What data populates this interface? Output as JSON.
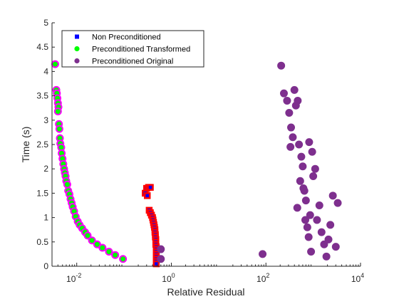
{
  "chart_data": {
    "type": "scatter",
    "xlabel": "Relative Residual",
    "ylabel": "Time (s)",
    "xscale": "log",
    "xlim": [
      0.003,
      10000
    ],
    "ylim": [
      0,
      5
    ],
    "xticks": [
      {
        "value": 0.01,
        "base": "10",
        "exp": "-2"
      },
      {
        "value": 1,
        "base": "10",
        "exp": "0"
      },
      {
        "value": 100,
        "base": "10",
        "exp": "2"
      },
      {
        "value": 10000,
        "base": "10",
        "exp": "4"
      }
    ],
    "yticks": [
      "0",
      "0.5",
      "1",
      "1.5",
      "2",
      "2.5",
      "3",
      "3.5",
      "4",
      "4.5",
      "5"
    ],
    "grid": false,
    "legend_position": "top-left",
    "series": [
      {
        "name": "Non Preconditioned",
        "marker": "square",
        "color": "#0000ff",
        "edge_color": "#ff0000",
        "points": [
          [
            0.3,
            1.6
          ],
          [
            0.33,
            1.62
          ],
          [
            0.36,
            1.62
          ],
          [
            0.28,
            1.5
          ],
          [
            0.31,
            1.45
          ],
          [
            0.34,
            1.15
          ],
          [
            0.36,
            1.1
          ],
          [
            0.38,
            1.05
          ],
          [
            0.4,
            1.0
          ],
          [
            0.41,
            0.95
          ],
          [
            0.42,
            0.9
          ],
          [
            0.43,
            0.85
          ],
          [
            0.44,
            0.8
          ],
          [
            0.45,
            0.75
          ],
          [
            0.45,
            0.7
          ],
          [
            0.46,
            0.65
          ],
          [
            0.46,
            0.6
          ],
          [
            0.47,
            0.55
          ],
          [
            0.47,
            0.5
          ],
          [
            0.47,
            0.45
          ],
          [
            0.48,
            0.4
          ],
          [
            0.48,
            0.35
          ],
          [
            0.48,
            0.3
          ],
          [
            0.48,
            0.25
          ],
          [
            0.48,
            0.2
          ],
          [
            0.48,
            0.15
          ],
          [
            0.48,
            0.1
          ],
          [
            0.48,
            0.05
          ]
        ]
      },
      {
        "name": "Preconditioned Transformed",
        "marker": "circle",
        "color": "#00ff00",
        "edge_color": "#ff00ff",
        "points": [
          [
            0.0035,
            4.15
          ],
          [
            0.0037,
            3.62
          ],
          [
            0.0038,
            3.55
          ],
          [
            0.0039,
            3.45
          ],
          [
            0.004,
            3.35
          ],
          [
            0.0041,
            3.27
          ],
          [
            0.004,
            3.18
          ],
          [
            0.0042,
            2.92
          ],
          [
            0.0043,
            2.82
          ],
          [
            0.0044,
            2.63
          ],
          [
            0.0045,
            2.52
          ],
          [
            0.0047,
            2.44
          ],
          [
            0.0048,
            2.32
          ],
          [
            0.005,
            2.21
          ],
          [
            0.0052,
            2.1
          ],
          [
            0.0054,
            2.0
          ],
          [
            0.0056,
            1.92
          ],
          [
            0.0058,
            1.85
          ],
          [
            0.006,
            1.75
          ],
          [
            0.0063,
            1.68
          ],
          [
            0.0066,
            1.55
          ],
          [
            0.007,
            1.48
          ],
          [
            0.0074,
            1.38
          ],
          [
            0.0078,
            1.3
          ],
          [
            0.0082,
            1.22
          ],
          [
            0.0088,
            1.13
          ],
          [
            0.0095,
            1.02
          ],
          [
            0.0105,
            0.92
          ],
          [
            0.0115,
            0.85
          ],
          [
            0.013,
            0.78
          ],
          [
            0.015,
            0.7
          ],
          [
            0.017,
            0.63
          ],
          [
            0.021,
            0.53
          ],
          [
            0.027,
            0.45
          ],
          [
            0.035,
            0.38
          ],
          [
            0.048,
            0.3
          ],
          [
            0.065,
            0.23
          ],
          [
            0.095,
            0.15
          ]
        ]
      },
      {
        "name": "Preconditioned Original",
        "marker": "circle",
        "color": "#7e2f8e",
        "edge_color": "#7e2f8e",
        "points": [
          [
            0.6,
            0.35
          ],
          [
            0.6,
            0.15
          ],
          [
            85,
            0.25
          ],
          [
            210,
            4.12
          ],
          [
            240,
            3.55
          ],
          [
            280,
            3.4
          ],
          [
            310,
            3.15
          ],
          [
            340,
            2.85
          ],
          [
            370,
            2.65
          ],
          [
            330,
            2.45
          ],
          [
            400,
            3.62
          ],
          [
            430,
            3.3
          ],
          [
            470,
            3.4
          ],
          [
            500,
            2.5
          ],
          [
            530,
            1.75
          ],
          [
            560,
            2.25
          ],
          [
            600,
            2.05
          ],
          [
            650,
            1.55
          ],
          [
            700,
            1.35
          ],
          [
            750,
            0.8
          ],
          [
            800,
            0.6
          ],
          [
            820,
            2.55
          ],
          [
            860,
            1.05
          ],
          [
            900,
            0.3
          ],
          [
            950,
            2.35
          ],
          [
            1000,
            1.85
          ],
          [
            1100,
            2.0
          ],
          [
            1200,
            0.95
          ],
          [
            1350,
            1.25
          ],
          [
            1500,
            0.7
          ],
          [
            1700,
            0.45
          ],
          [
            1900,
            0.2
          ],
          [
            2100,
            0.55
          ],
          [
            2300,
            0.85
          ],
          [
            2600,
            1.45
          ],
          [
            3000,
            0.4
          ],
          [
            3300,
            1.3
          ],
          [
            460,
            1.2
          ],
          [
            620,
            1.6
          ],
          [
            680,
            0.95
          ]
        ]
      }
    ]
  }
}
